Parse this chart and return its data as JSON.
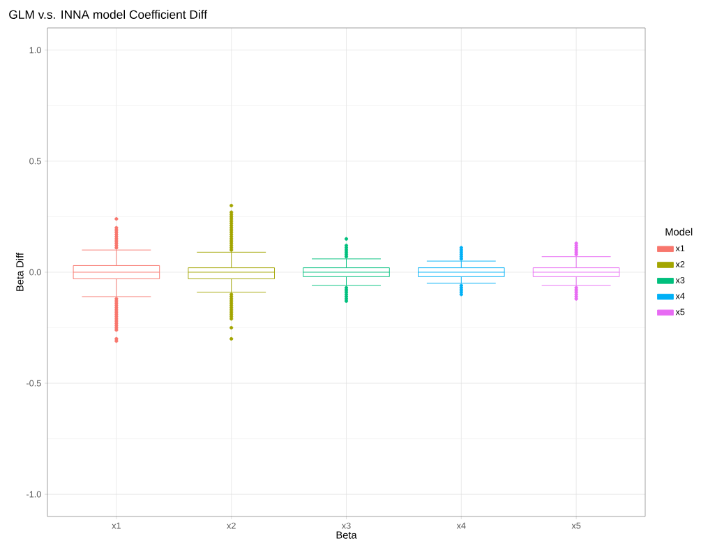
{
  "chart_data": {
    "type": "box",
    "title": "GLM v.s. INNA model Coefficient Diff",
    "xlabel": "Beta",
    "ylabel": "Beta Diff",
    "legend_title": "Model",
    "legend": "right",
    "grid": true,
    "categories": [
      "x1",
      "x2",
      "x3",
      "x4",
      "x5"
    ],
    "ylim": [
      -1.1,
      1.1
    ],
    "yticks": [
      {
        "value": -1,
        "label": "-1.0"
      },
      {
        "value": -0.5,
        "label": "-0.5"
      },
      {
        "value": 0,
        "label": "0.0"
      },
      {
        "value": 0.5,
        "label": "0.5"
      },
      {
        "value": 1,
        "label": "1.0"
      }
    ],
    "series": [
      {
        "name": "x1",
        "color": "#f8766d",
        "boxes": [
          {
            "low": -0.11,
            "q1": -0.03,
            "median": 0.0,
            "q3": 0.03,
            "high": 0.1,
            "outliers": [
              0.11,
              0.12,
              0.13,
              0.14,
              0.15,
              0.16,
              0.17,
              0.18,
              0.19,
              0.2,
              0.24,
              -0.12,
              -0.13,
              -0.14,
              -0.15,
              -0.16,
              -0.17,
              -0.18,
              -0.19,
              -0.2,
              -0.21,
              -0.22,
              -0.23,
              -0.24,
              -0.25,
              -0.26,
              -0.3,
              -0.31
            ]
          },
          null,
          null,
          null,
          null
        ]
      },
      {
        "name": "x2",
        "color": "#a3a500",
        "boxes": [
          null,
          {
            "low": -0.09,
            "q1": -0.03,
            "median": 0.0,
            "q3": 0.02,
            "high": 0.09,
            "outliers": [
              0.1,
              0.11,
              0.12,
              0.13,
              0.14,
              0.15,
              0.16,
              0.17,
              0.18,
              0.19,
              0.2,
              0.21,
              0.22,
              0.23,
              0.24,
              0.25,
              0.26,
              0.27,
              0.3,
              -0.1,
              -0.11,
              -0.12,
              -0.13,
              -0.14,
              -0.15,
              -0.16,
              -0.17,
              -0.18,
              -0.19,
              -0.2,
              -0.21,
              -0.25,
              -0.3
            ]
          },
          null,
          null,
          null
        ]
      },
      {
        "name": "x3",
        "color": "#00bf7d",
        "boxes": [
          null,
          null,
          {
            "low": -0.06,
            "q1": -0.02,
            "median": 0.0,
            "q3": 0.02,
            "high": 0.06,
            "outliers": [
              0.07,
              0.08,
              0.09,
              0.1,
              0.11,
              0.12,
              0.15,
              -0.07,
              -0.08,
              -0.09,
              -0.1,
              -0.11,
              -0.12,
              -0.13
            ]
          },
          null,
          null
        ]
      },
      {
        "name": "x4",
        "color": "#00b0f6",
        "boxes": [
          null,
          null,
          null,
          {
            "low": -0.05,
            "q1": -0.02,
            "median": 0.0,
            "q3": 0.02,
            "high": 0.05,
            "outliers": [
              0.06,
              0.07,
              0.08,
              0.09,
              0.1,
              0.11,
              -0.06,
              -0.07,
              -0.08,
              -0.09,
              -0.1
            ]
          },
          null
        ]
      },
      {
        "name": "x5",
        "color": "#e76bf3",
        "boxes": [
          null,
          null,
          null,
          null,
          {
            "low": -0.06,
            "q1": -0.02,
            "median": 0.0,
            "q3": 0.02,
            "high": 0.07,
            "outliers": [
              0.08,
              0.09,
              0.1,
              0.11,
              0.12,
              0.13,
              -0.07,
              -0.08,
              -0.09,
              -0.1,
              -0.11,
              -0.12
            ]
          }
        ]
      }
    ]
  }
}
